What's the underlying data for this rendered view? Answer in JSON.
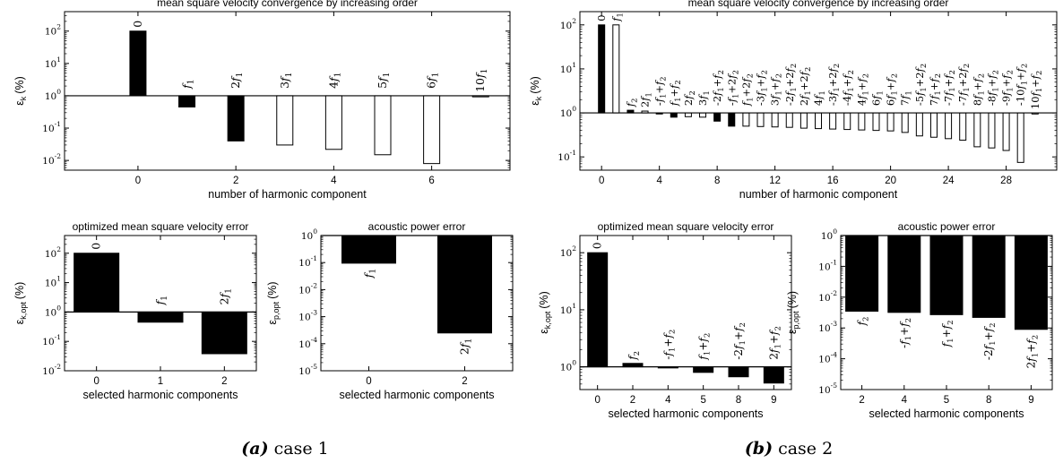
{
  "figure": {
    "captions": [
      {
        "letter": "(a)",
        "text": "case 1"
      },
      {
        "letter": "(b)",
        "text": "case 2"
      }
    ]
  },
  "chart_data": [
    {
      "type": "bar",
      "title": "mean square velocity convergence by increasing order",
      "xlabel": "number of harmonic component",
      "ylabel": "ε_k (%)",
      "yscale": "log",
      "baseline": 1,
      "ylim": [
        0.005,
        400
      ],
      "xlim": [
        -1.5,
        7.6
      ],
      "xticks": [
        0,
        2,
        4,
        6
      ],
      "yticks": [
        {
          "v": 0.01,
          "label": "10^-2"
        },
        {
          "v": 0.1,
          "label": "10^-1"
        },
        {
          "v": 1,
          "label": "10^0"
        },
        {
          "v": 10,
          "label": "10^1"
        },
        {
          "v": 100,
          "label": "10^2"
        }
      ],
      "bars": [
        {
          "x": 0,
          "value": 100,
          "filled": true,
          "label": "0"
        },
        {
          "x": 1,
          "value": 0.45,
          "filled": true,
          "label": "f1"
        },
        {
          "x": 2,
          "value": 0.04,
          "filled": true,
          "label": "2f1"
        },
        {
          "x": 3,
          "value": 0.03,
          "filled": false,
          "label": "3f1"
        },
        {
          "x": 4,
          "value": 0.022,
          "filled": false,
          "label": "4f1"
        },
        {
          "x": 5,
          "value": 0.015,
          "filled": false,
          "label": "5f1"
        },
        {
          "x": 6,
          "value": 0.008,
          "filled": false,
          "label": "6f1"
        },
        {
          "x": 7,
          "value": 1.0,
          "filled": false,
          "label": "10f1"
        }
      ]
    },
    {
      "type": "bar",
      "title": "mean square velocity convergence by increasing order",
      "xlabel": "number of harmonic component",
      "ylabel": "ε_k (%)",
      "yscale": "log",
      "baseline": 1,
      "ylim": [
        0.05,
        200
      ],
      "xlim": [
        -1.5,
        31.5
      ],
      "xticks": [
        0,
        4,
        8,
        12,
        16,
        20,
        24,
        28
      ],
      "yticks": [
        {
          "v": 0.1,
          "label": "10^-1"
        },
        {
          "v": 1,
          "label": "10^0"
        },
        {
          "v": 10,
          "label": "10^1"
        },
        {
          "v": 100,
          "label": "10^2"
        }
      ],
      "bars": [
        {
          "x": 0,
          "value": 100,
          "filled": true,
          "label": "0"
        },
        {
          "x": 1,
          "value": 100,
          "filled": false,
          "label": "f1"
        },
        {
          "x": 2,
          "value": 1.15,
          "filled": true,
          "label": "f2"
        },
        {
          "x": 3,
          "value": 1.1,
          "filled": false,
          "label": "2f1"
        },
        {
          "x": 4,
          "value": 0.97,
          "filled": true,
          "label": "-f1+f2"
        },
        {
          "x": 5,
          "value": 0.8,
          "filled": true,
          "label": "f1+f2"
        },
        {
          "x": 6,
          "value": 0.82,
          "filled": false,
          "label": "2f2"
        },
        {
          "x": 7,
          "value": 0.8,
          "filled": false,
          "label": "3f1"
        },
        {
          "x": 8,
          "value": 0.65,
          "filled": true,
          "label": "-2f1+f2"
        },
        {
          "x": 9,
          "value": 0.5,
          "filled": true,
          "label": "-f1+2f2"
        },
        {
          "x": 10,
          "value": 0.5,
          "filled": false,
          "label": "f1+2f2"
        },
        {
          "x": 11,
          "value": 0.49,
          "filled": false,
          "label": "-3f1+f2"
        },
        {
          "x": 12,
          "value": 0.48,
          "filled": false,
          "label": "3f1+f2"
        },
        {
          "x": 13,
          "value": 0.47,
          "filled": false,
          "label": "-2f1+2f2"
        },
        {
          "x": 14,
          "value": 0.45,
          "filled": false,
          "label": "2f1+2f2"
        },
        {
          "x": 15,
          "value": 0.44,
          "filled": false,
          "label": "4f1"
        },
        {
          "x": 16,
          "value": 0.43,
          "filled": false,
          "label": "-3f1+2f2"
        },
        {
          "x": 17,
          "value": 0.42,
          "filled": false,
          "label": "-4f1+f2"
        },
        {
          "x": 18,
          "value": 0.41,
          "filled": false,
          "label": "4f1+f2"
        },
        {
          "x": 19,
          "value": 0.4,
          "filled": false,
          "label": "6f1"
        },
        {
          "x": 20,
          "value": 0.39,
          "filled": false,
          "label": "6f1+f2"
        },
        {
          "x": 21,
          "value": 0.36,
          "filled": false,
          "label": "7f1"
        },
        {
          "x": 22,
          "value": 0.3,
          "filled": false,
          "label": "-5f1+2f2"
        },
        {
          "x": 23,
          "value": 0.28,
          "filled": false,
          "label": "7f1+f2"
        },
        {
          "x": 24,
          "value": 0.26,
          "filled": false,
          "label": "-7f1+f2"
        },
        {
          "x": 25,
          "value": 0.24,
          "filled": false,
          "label": "-7f1+2f2"
        },
        {
          "x": 26,
          "value": 0.17,
          "filled": false,
          "label": "8f1+f2"
        },
        {
          "x": 27,
          "value": 0.16,
          "filled": false,
          "label": "-8f1+f2"
        },
        {
          "x": 28,
          "value": 0.14,
          "filled": false,
          "label": "-9f1+f2"
        },
        {
          "x": 29,
          "value": 0.075,
          "filled": false,
          "label": "-10f1+f2"
        },
        {
          "x": 30,
          "value": 1.0,
          "filled": false,
          "label": "10f1+f2"
        }
      ]
    },
    {
      "type": "bar",
      "title": "optimized mean square velocity error",
      "xlabel": "selected harmonic components",
      "ylabel": "ε_k,opt (%)",
      "yscale": "log",
      "baseline": 1,
      "ylim": [
        0.01,
        400
      ],
      "categories": [
        "0",
        "1",
        "2"
      ],
      "yticks": [
        {
          "v": 0.01,
          "label": "10^-2"
        },
        {
          "v": 0.1,
          "label": "10^-1"
        },
        {
          "v": 1,
          "label": "10^0"
        },
        {
          "v": 10,
          "label": "10^1"
        },
        {
          "v": 100,
          "label": "10^2"
        }
      ],
      "values": [
        100,
        0.45,
        0.038
      ],
      "bar_labels": [
        "0",
        "f1",
        "2f1"
      ]
    },
    {
      "type": "bar",
      "title": "acoustic power error",
      "xlabel": "selected harmonic components",
      "ylabel": "ε_p,opt (%)",
      "yscale": "log",
      "baseline": 1,
      "ylim": [
        1e-05,
        1
      ],
      "categories": [
        "0",
        "2"
      ],
      "yticks": [
        {
          "v": 1e-05,
          "label": "10^-5"
        },
        {
          "v": 0.0001,
          "label": "10^-4"
        },
        {
          "v": 0.001,
          "label": "10^-3"
        },
        {
          "v": 0.01,
          "label": "10^-2"
        },
        {
          "v": 0.1,
          "label": "10^-1"
        },
        {
          "v": 1,
          "label": "10^0"
        }
      ],
      "values": [
        0.095,
        0.00025
      ],
      "bar_labels": [
        "f1",
        "2f1"
      ]
    },
    {
      "type": "bar",
      "title": "optimized mean square velocity error",
      "xlabel": "selected harmonic components",
      "ylabel": "ε_k,opt (%)",
      "yscale": "log",
      "baseline": 1,
      "ylim": [
        0.4,
        200
      ],
      "categories": [
        "0",
        "2",
        "4",
        "5",
        "8",
        "9"
      ],
      "yticks": [
        {
          "v": 1,
          "label": "10^0"
        },
        {
          "v": 10,
          "label": "10^1"
        },
        {
          "v": 100,
          "label": "10^2"
        }
      ],
      "values": [
        100,
        1.15,
        0.97,
        0.8,
        0.67,
        0.52
      ],
      "bar_labels": [
        "0",
        "f2",
        "-f1+f2",
        "f1+f2",
        "-2f1+f2",
        "2f1+f2"
      ]
    },
    {
      "type": "bar",
      "title": "acoustic power error",
      "xlabel": "selected harmonic components",
      "ylabel": "ε_p,opt (%)",
      "yscale": "log",
      "baseline": 1,
      "ylim": [
        1e-05,
        1
      ],
      "categories": [
        "2",
        "4",
        "5",
        "8",
        "9"
      ],
      "yticks": [
        {
          "v": 1e-05,
          "label": "10^-5"
        },
        {
          "v": 0.0001,
          "label": "10^-4"
        },
        {
          "v": 0.001,
          "label": "10^-3"
        },
        {
          "v": 0.01,
          "label": "10^-2"
        },
        {
          "v": 0.1,
          "label": "10^-1"
        },
        {
          "v": 1,
          "label": "10^0"
        }
      ],
      "values": [
        0.0035,
        0.0032,
        0.0027,
        0.0022,
        0.0009
      ],
      "bar_labels": [
        "f2",
        "-f1+f2",
        "f1+f2",
        "-2f1+f2",
        "2f1+f2"
      ]
    }
  ]
}
